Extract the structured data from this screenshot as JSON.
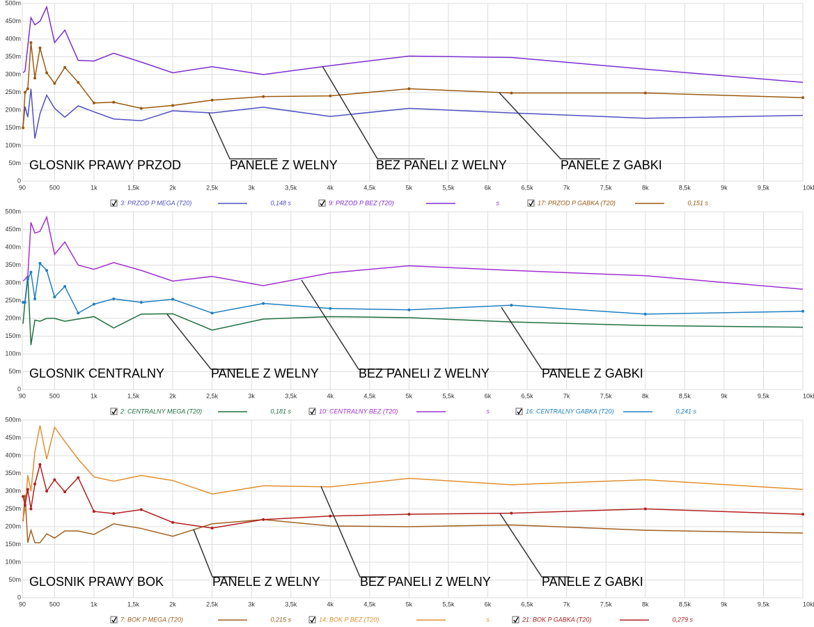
{
  "chart_data": [
    {
      "type": "line",
      "title": "GLOSNIK PRAWY PRZOD",
      "annotations": [
        "PANELE Z WELNY",
        "BEZ PANELI Z WELNY",
        "PANELE Z GABKI"
      ],
      "x": [
        100,
        125,
        160,
        200,
        250,
        315,
        400,
        500,
        630,
        800,
        1000,
        1250,
        1600,
        2000,
        2500,
        3150,
        4000,
        5000,
        6300,
        8000,
        10000
      ],
      "xlim": [
        90,
        10000
      ],
      "xticks": [
        90,
        500,
        {
          "value": 1000,
          "label": "1k"
        },
        {
          "value": 1500,
          "label": "1,5k"
        },
        {
          "value": 2000,
          "label": "2k"
        },
        {
          "value": 2500,
          "label": "2,5k"
        },
        {
          "value": 3000,
          "label": "3k"
        },
        {
          "value": 3500,
          "label": "3,5k"
        },
        {
          "value": 4000,
          "label": "4k"
        },
        {
          "value": 4500,
          "label": "4,5k"
        },
        {
          "value": 5000,
          "label": "5k"
        },
        {
          "value": 5500,
          "label": "5,5k"
        },
        {
          "value": 6000,
          "label": "6k"
        },
        {
          "value": 6500,
          "label": "6,5k"
        },
        {
          "value": 7000,
          "label": "7k"
        },
        {
          "value": 7500,
          "label": "7,5k"
        },
        {
          "value": 8000,
          "label": "8k"
        },
        {
          "value": 8500,
          "label": "8,5k"
        },
        {
          "value": 9000,
          "label": "9k"
        },
        {
          "value": 9500,
          "label": "9,5k"
        },
        {
          "value": 10000,
          "label": "10kHz"
        }
      ],
      "ylim": [
        0,
        0.5
      ],
      "yticks": [
        0,
        {
          "value": 0.05,
          "label": "50m"
        },
        {
          "value": 0.1,
          "label": "100m"
        },
        {
          "value": 0.15,
          "label": "150m"
        },
        {
          "value": 0.2,
          "label": "200m"
        },
        {
          "value": 0.25,
          "label": "250m"
        },
        {
          "value": 0.3,
          "label": "300m"
        },
        {
          "value": 0.35,
          "label": "350m"
        },
        {
          "value": 0.4,
          "label": "400m"
        },
        {
          "value": 0.45,
          "label": "450m"
        },
        {
          "value": 0.5,
          "label": "500m"
        }
      ],
      "grid": true,
      "series": [
        {
          "name": "3: PRZOD P MEGA (T20)",
          "color": "#5050c0",
          "legend_value": "0,148 s",
          "markers": false,
          "values": [
            0.155,
            0.21,
            0.18,
            0.26,
            0.12,
            0.19,
            0.242,
            0.205,
            0.18,
            0.212,
            0.195,
            0.175,
            0.17,
            0.198,
            0.192,
            0.208,
            0.182,
            0.205,
            0.192,
            0.177,
            0.185
          ]
        },
        {
          "name": "9: PRZOD P BEZ (T20)",
          "color": "#7b2fd0",
          "legend_value": "s",
          "markers": false,
          "values": [
            0.305,
            0.31,
            0.38,
            0.46,
            0.44,
            0.45,
            0.49,
            0.39,
            0.425,
            0.34,
            0.338,
            0.36,
            0.335,
            0.305,
            0.322,
            0.3,
            0.325,
            0.352,
            0.348,
            0.315,
            0.278
          ]
        },
        {
          "name": "17: PRZOD P GABKA (T20)",
          "color": "#9a5a10",
          "legend_value": "0,151 s",
          "markers": true,
          "values": [
            0.15,
            0.25,
            0.26,
            0.39,
            0.29,
            0.375,
            0.305,
            0.275,
            0.32,
            0.278,
            0.22,
            0.222,
            0.205,
            0.213,
            0.228,
            0.238,
            0.24,
            0.26,
            0.248,
            0.248,
            0.235
          ]
        }
      ]
    },
    {
      "type": "line",
      "title": "GLOSNIK CENTRALNY",
      "annotations": [
        "PANELE Z WELNY",
        "BEZ PANELI Z WELNY",
        "PANELE Z GABKI"
      ],
      "x": [
        100,
        125,
        160,
        200,
        250,
        315,
        400,
        500,
        630,
        800,
        1000,
        1250,
        1600,
        2000,
        2500,
        3150,
        4000,
        5000,
        6300,
        8000,
        10000
      ],
      "xlim": [
        90,
        10000
      ],
      "xticks": [
        90,
        500,
        {
          "value": 1000,
          "label": "1k"
        },
        {
          "value": 1500,
          "label": "1,5k"
        },
        {
          "value": 2000,
          "label": "2k"
        },
        {
          "value": 2500,
          "label": "2,5k"
        },
        {
          "value": 3000,
          "label": "3k"
        },
        {
          "value": 3500,
          "label": "3,5k"
        },
        {
          "value": 4000,
          "label": "4k"
        },
        {
          "value": 4500,
          "label": "4,5k"
        },
        {
          "value": 5000,
          "label": "5k"
        },
        {
          "value": 5500,
          "label": "5,5k"
        },
        {
          "value": 6000,
          "label": "6k"
        },
        {
          "value": 6500,
          "label": "6,5k"
        },
        {
          "value": 7000,
          "label": "7k"
        },
        {
          "value": 7500,
          "label": "7,5k"
        },
        {
          "value": 8000,
          "label": "8k"
        },
        {
          "value": 8500,
          "label": "8,5k"
        },
        {
          "value": 9000,
          "label": "9k"
        },
        {
          "value": 9500,
          "label": "9,5k"
        },
        {
          "value": 10000,
          "label": "10kHz"
        }
      ],
      "ylim": [
        0,
        0.5
      ],
      "yticks": [
        0,
        {
          "value": 0.05,
          "label": "50m"
        },
        {
          "value": 0.1,
          "label": "100m"
        },
        {
          "value": 0.15,
          "label": "150m"
        },
        {
          "value": 0.2,
          "label": "200m"
        },
        {
          "value": 0.25,
          "label": "250m"
        },
        {
          "value": 0.3,
          "label": "300m"
        },
        {
          "value": 0.35,
          "label": "350m"
        },
        {
          "value": 0.4,
          "label": "400m"
        },
        {
          "value": 0.45,
          "label": "450m"
        },
        {
          "value": 0.5,
          "label": "500m"
        }
      ],
      "grid": true,
      "series": [
        {
          "name": "2: CENTRALNY MEGA (T20)",
          "color": "#207040",
          "legend_value": "0,181 s",
          "markers": false,
          "values": [
            0.185,
            0.25,
            0.32,
            0.125,
            0.195,
            0.192,
            0.2,
            0.2,
            0.192,
            0.198,
            0.205,
            0.173,
            0.212,
            0.213,
            0.167,
            0.198,
            0.205,
            0.202,
            0.19,
            0.18,
            0.175
          ]
        },
        {
          "name": "10: CENTRALNY BEZ (T20)",
          "color": "#a030d0",
          "legend_value": "s",
          "markers": false,
          "values": [
            0.305,
            0.31,
            0.32,
            0.47,
            0.44,
            0.445,
            0.485,
            0.38,
            0.415,
            0.35,
            0.338,
            0.357,
            0.335,
            0.305,
            0.318,
            0.292,
            0.328,
            0.348,
            0.335,
            0.32,
            0.282
          ]
        },
        {
          "name": "16: CENTRALNY GABKA (T20)",
          "color": "#2080c0",
          "legend_value": "0,241 s",
          "markers": true,
          "values": [
            0.245,
            0.245,
            0.31,
            0.33,
            0.255,
            0.355,
            0.335,
            0.26,
            0.29,
            0.215,
            0.24,
            0.255,
            0.245,
            0.254,
            0.215,
            0.242,
            0.228,
            0.224,
            0.237,
            0.212,
            0.22
          ]
        }
      ]
    },
    {
      "type": "line",
      "title": "GLOSNIK PRAWY BOK",
      "annotations": [
        "PANELE Z WELNY",
        "BEZ PANELI Z WELNY",
        "PANELE Z GABKI"
      ],
      "x": [
        100,
        125,
        160,
        200,
        250,
        315,
        400,
        500,
        630,
        800,
        1000,
        1250,
        1600,
        2000,
        2500,
        3150,
        4000,
        5000,
        6300,
        8000,
        10000
      ],
      "xlim": [
        90,
        10000
      ],
      "xticks": [
        90,
        500,
        {
          "value": 1000,
          "label": "1k"
        },
        {
          "value": 1500,
          "label": "1,5k"
        },
        {
          "value": 2000,
          "label": "2k"
        },
        {
          "value": 2500,
          "label": "2,5k"
        },
        {
          "value": 3000,
          "label": "3k"
        },
        {
          "value": 3500,
          "label": "3,5k"
        },
        {
          "value": 4000,
          "label": "4k"
        },
        {
          "value": 4500,
          "label": "4,5k"
        },
        {
          "value": 5000,
          "label": "5k"
        },
        {
          "value": 5500,
          "label": "5,5k"
        },
        {
          "value": 6000,
          "label": "6k"
        },
        {
          "value": 6500,
          "label": "6,5k"
        },
        {
          "value": 7000,
          "label": "7k"
        },
        {
          "value": 7500,
          "label": "7,5k"
        },
        {
          "value": 8000,
          "label": "8k"
        },
        {
          "value": 8500,
          "label": "8,5k"
        },
        {
          "value": 9000,
          "label": "9k"
        },
        {
          "value": 9500,
          "label": "9,5k"
        },
        {
          "value": 10000,
          "label": "10kHz"
        }
      ],
      "ylim": [
        0,
        0.5
      ],
      "yticks": [
        0,
        {
          "value": 0.05,
          "label": "50m"
        },
        {
          "value": 0.1,
          "label": "100m"
        },
        {
          "value": 0.15,
          "label": "150m"
        },
        {
          "value": 0.2,
          "label": "200m"
        },
        {
          "value": 0.25,
          "label": "250m"
        },
        {
          "value": 0.3,
          "label": "300m"
        },
        {
          "value": 0.35,
          "label": "350m"
        },
        {
          "value": 0.4,
          "label": "400m"
        },
        {
          "value": 0.45,
          "label": "450m"
        },
        {
          "value": 0.5,
          "label": "500m"
        }
      ],
      "grid": true,
      "series": [
        {
          "name": "7: BOK P MEGA (T20)",
          "color": "#a06020",
          "legend_value": "0,215 s",
          "markers": false,
          "values": [
            0.215,
            0.29,
            0.155,
            0.19,
            0.155,
            0.155,
            0.18,
            0.168,
            0.188,
            0.188,
            0.178,
            0.208,
            0.195,
            0.173,
            0.208,
            0.22,
            0.202,
            0.2,
            0.205,
            0.19,
            0.182
          ]
        },
        {
          "name": "14: BOK P BEZ (T20)",
          "color": "#e09030",
          "legend_value": "s",
          "markers": false,
          "values": [
            0.22,
            0.25,
            0.345,
            0.3,
            0.41,
            0.485,
            0.39,
            0.48,
            0.44,
            0.39,
            0.34,
            0.328,
            0.344,
            0.33,
            0.292,
            0.315,
            0.312,
            0.336,
            0.318,
            0.332,
            0.305
          ]
        },
        {
          "name": "21: BOK P GABKA (T20)",
          "color": "#b02020",
          "legend_value": "0,279 s",
          "markers": true,
          "values": [
            0.285,
            0.26,
            0.305,
            0.25,
            0.32,
            0.375,
            0.3,
            0.332,
            0.298,
            0.338,
            0.243,
            0.237,
            0.248,
            0.212,
            0.196,
            0.22,
            0.23,
            0.235,
            0.238,
            0.25,
            0.235
          ]
        }
      ]
    }
  ]
}
